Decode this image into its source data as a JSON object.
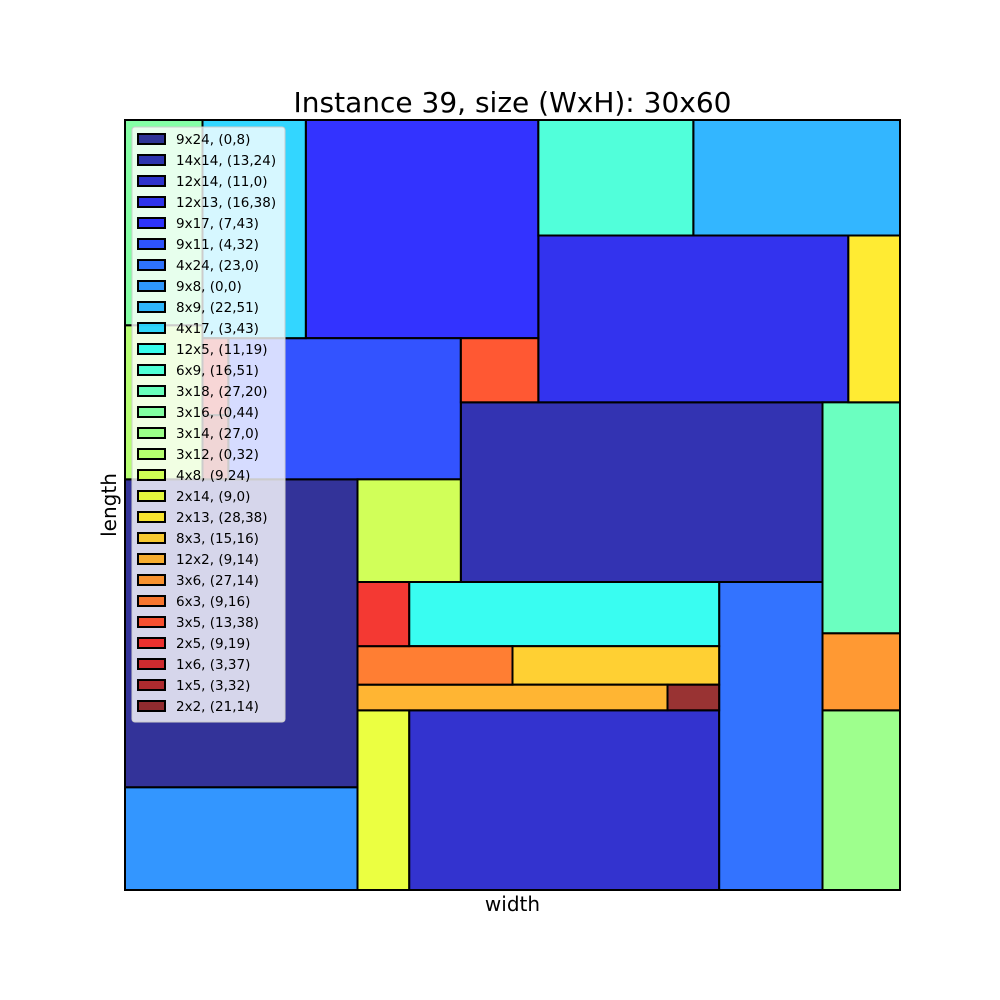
{
  "chart_data": {
    "type": "rectangle-packing",
    "title": "Instance 39, size (WxH): 30x60",
    "xlabel": "width",
    "ylabel": "length",
    "container": {
      "width": 30,
      "height": 60
    },
    "xlim": [
      0,
      30
    ],
    "ylim": [
      0,
      60
    ],
    "grid": false,
    "legend_placement": "top-left",
    "rectangles": [
      {
        "label": "9x24, (0,8)",
        "w": 9,
        "h": 24,
        "x": 0,
        "y": 8,
        "color": "#000080"
      },
      {
        "label": "14x14, (13,24)",
        "w": 14,
        "h": 14,
        "x": 13,
        "y": 24,
        "color": "#00009f"
      },
      {
        "label": "12x14, (11,0)",
        "w": 12,
        "h": 14,
        "x": 11,
        "y": 0,
        "color": "#0000c3"
      },
      {
        "label": "12x13, (16,38)",
        "w": 12,
        "h": 13,
        "x": 16,
        "y": 38,
        "color": "#0000ea"
      },
      {
        "label": "9x17, (7,43)",
        "w": 9,
        "h": 17,
        "x": 7,
        "y": 43,
        "color": "#0000ff"
      },
      {
        "label": "9x11, (4,32)",
        "w": 9,
        "h": 11,
        "x": 4,
        "y": 32,
        "color": "#0028ff"
      },
      {
        "label": "4x24, (23,0)",
        "w": 4,
        "h": 24,
        "x": 23,
        "y": 0,
        "color": "#0050ff"
      },
      {
        "label": "9x8, (0,0)",
        "w": 9,
        "h": 8,
        "x": 0,
        "y": 0,
        "color": "#007cff"
      },
      {
        "label": "8x9, (22,51)",
        "w": 8,
        "h": 9,
        "x": 22,
        "y": 51,
        "color": "#00a4ff"
      },
      {
        "label": "4x17, (3,43)",
        "w": 4,
        "h": 17,
        "x": 3,
        "y": 43,
        "color": "#00ccff"
      },
      {
        "label": "12x5, (11,19)",
        "w": 12,
        "h": 5,
        "x": 11,
        "y": 19,
        "color": "#07fcee"
      },
      {
        "label": "6x9, (16,51)",
        "w": 6,
        "h": 9,
        "x": 16,
        "y": 51,
        "color": "#26ffd1"
      },
      {
        "label": "3x18, (27,20)",
        "w": 3,
        "h": 18,
        "x": 27,
        "y": 20,
        "color": "#46ffb0"
      },
      {
        "label": "3x16, (0,44)",
        "w": 3,
        "h": 16,
        "x": 0,
        "y": 44,
        "color": "#66ff90"
      },
      {
        "label": "3x14, (27,0)",
        "w": 3,
        "h": 14,
        "x": 27,
        "y": 0,
        "color": "#86ff70"
      },
      {
        "label": "3x12, (0,32)",
        "w": 3,
        "h": 12,
        "x": 0,
        "y": 32,
        "color": "#a6ff50"
      },
      {
        "label": "4x8, (9,24)",
        "w": 4,
        "h": 8,
        "x": 9,
        "y": 24,
        "color": "#c6ff30"
      },
      {
        "label": "2x14, (9,0)",
        "w": 2,
        "h": 14,
        "x": 9,
        "y": 0,
        "color": "#e6ff11"
      },
      {
        "label": "2x13, (28,38)",
        "w": 2,
        "h": 13,
        "x": 28,
        "y": 38,
        "color": "#ffe600"
      },
      {
        "label": "8x3, (15,16)",
        "w": 8,
        "h": 3,
        "x": 15,
        "y": 16,
        "color": "#ffc400"
      },
      {
        "label": "12x2, (9,14)",
        "w": 12,
        "h": 2,
        "x": 9,
        "y": 14,
        "color": "#ffa200"
      },
      {
        "label": "3x6, (27,14)",
        "w": 3,
        "h": 6,
        "x": 27,
        "y": 14,
        "color": "#ff8000"
      },
      {
        "label": "6x3, (9,16)",
        "w": 6,
        "h": 3,
        "x": 9,
        "y": 16,
        "color": "#ff5e00"
      },
      {
        "label": "3x5, (13,38)",
        "w": 3,
        "h": 5,
        "x": 13,
        "y": 38,
        "color": "#ff2e00"
      },
      {
        "label": "2x5, (9,19)",
        "w": 2,
        "h": 5,
        "x": 9,
        "y": 19,
        "color": "#f10800"
      },
      {
        "label": "1x6, (3,37)",
        "w": 1,
        "h": 6,
        "x": 3,
        "y": 37,
        "color": "#cd0000"
      },
      {
        "label": "1x5, (3,32)",
        "w": 1,
        "h": 5,
        "x": 3,
        "y": 32,
        "color": "#a40000"
      },
      {
        "label": "2x2, (21,14)",
        "w": 2,
        "h": 2,
        "x": 21,
        "y": 14,
        "color": "#800000"
      }
    ]
  }
}
